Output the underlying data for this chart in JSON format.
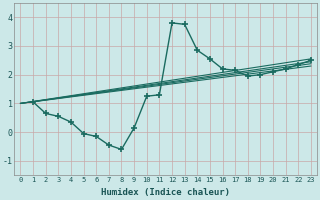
{
  "xlabel": "Humidex (Indice chaleur)",
  "bg_color": "#cce8e8",
  "grid_color": "#c8a8a8",
  "line_color": "#1a6b60",
  "xlim": [
    -0.5,
    23.5
  ],
  "ylim": [
    -1.5,
    4.5
  ],
  "xticks": [
    0,
    1,
    2,
    3,
    4,
    5,
    6,
    7,
    8,
    9,
    10,
    11,
    12,
    13,
    14,
    15,
    16,
    17,
    18,
    19,
    20,
    21,
    22,
    23
  ],
  "yticks": [
    -1,
    0,
    1,
    2,
    3,
    4
  ],
  "main_series": {
    "x": [
      1,
      2,
      3,
      4,
      5,
      6,
      7,
      8,
      9,
      10,
      11,
      12,
      13,
      14,
      15,
      16,
      17,
      18,
      19,
      20,
      21,
      22,
      23
    ],
    "y": [
      1.05,
      0.65,
      0.55,
      0.35,
      -0.05,
      -0.15,
      -0.45,
      -0.6,
      0.15,
      1.25,
      1.3,
      3.8,
      3.75,
      2.85,
      2.55,
      2.2,
      2.15,
      1.95,
      2.0,
      2.1,
      2.2,
      2.35,
      2.5
    ]
  },
  "straight_lines": [
    {
      "x0": 0,
      "y0": 1.0,
      "x1": 23,
      "y1": 2.55
    },
    {
      "x0": 0,
      "y0": 1.0,
      "x1": 23,
      "y1": 2.45
    },
    {
      "x0": 0,
      "y0": 1.0,
      "x1": 23,
      "y1": 2.38
    },
    {
      "x0": 0,
      "y0": 1.0,
      "x1": 23,
      "y1": 2.3
    }
  ]
}
